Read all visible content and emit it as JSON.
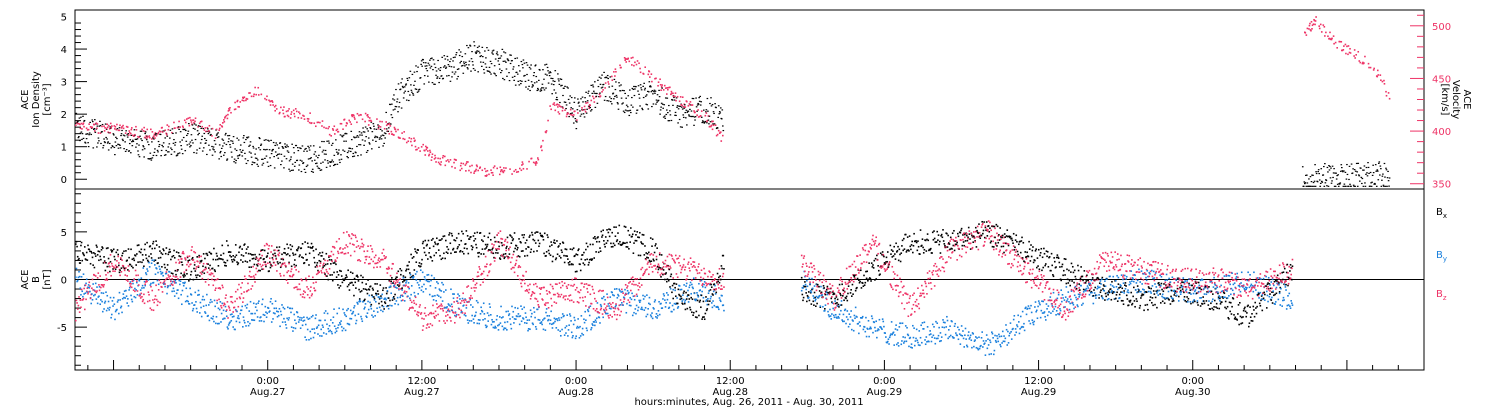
{
  "chart_data": [
    {
      "type": "scatter",
      "panel": "top",
      "ylabel": [
        "ACE",
        "Ion Density",
        "[cm⁻³]"
      ],
      "y2label": [
        "ACE",
        "Velocity",
        "[km/s]"
      ],
      "xlim": [
        -15,
        90
      ],
      "ylim": [
        -0.3,
        5.2
      ],
      "y2lim": [
        345,
        515
      ],
      "yticks": [
        "0",
        "1",
        "2",
        "3",
        "4",
        "5"
      ],
      "y2ticks": [
        "350",
        "400",
        "450",
        "500"
      ],
      "colors": {
        "density": "#000000",
        "velocity": "#ee3366"
      },
      "segments": [
        {
          "t0": -15,
          "t1": 35.4,
          "density": [
            [
              -15,
              1.6
            ],
            [
              -12,
              1.2
            ],
            [
              -9,
              1.0
            ],
            [
              -6,
              1.3
            ],
            [
              -3,
              1.0
            ],
            [
              0,
              0.8
            ],
            [
              3,
              0.6
            ],
            [
              6,
              1.0
            ],
            [
              9,
              1.5
            ],
            [
              10,
              2.5
            ],
            [
              12,
              3.3
            ],
            [
              14,
              3.4
            ],
            [
              16,
              3.8
            ],
            [
              18,
              3.6
            ],
            [
              20,
              3.2
            ],
            [
              22,
              3.1
            ],
            [
              24,
              2.0
            ],
            [
              26,
              2.9
            ],
            [
              28,
              2.4
            ],
            [
              30,
              2.6
            ],
            [
              32,
              2.0
            ],
            [
              34,
              2.2
            ],
            [
              35.4,
              1.8
            ]
          ],
          "velocity": [
            [
              -15,
              405
            ],
            [
              -12,
              403
            ],
            [
              -9,
              398
            ],
            [
              -6,
              410
            ],
            [
              -4,
              398
            ],
            [
              -3,
              422
            ],
            [
              -1,
              440
            ],
            [
              1,
              420
            ],
            [
              3,
              415
            ],
            [
              5,
              400
            ],
            [
              7,
              415
            ],
            [
              9,
              406
            ],
            [
              11,
              392
            ],
            [
              13,
              375
            ],
            [
              15,
              368
            ],
            [
              17,
              362
            ],
            [
              19,
              365
            ],
            [
              21,
              372
            ],
            [
              22,
              424
            ],
            [
              24,
              414
            ],
            [
              26,
              440
            ],
            [
              28,
              470
            ],
            [
              30,
              450
            ],
            [
              32,
              430
            ],
            [
              34,
              415
            ],
            [
              35.4,
              392
            ]
          ]
        },
        {
          "t0": 80.5,
          "t1": 87.3,
          "density": [
            [
              80.5,
              0.05
            ],
            [
              82,
              0.05
            ],
            [
              84,
              0.05
            ],
            [
              85.5,
              0.1
            ],
            [
              87.3,
              0.15
            ]
          ],
          "velocity": [
            [
              80.5,
              490
            ],
            [
              81.5,
              505
            ],
            [
              83,
              485
            ],
            [
              85,
              470
            ],
            [
              86.5,
              455
            ],
            [
              87.3,
              430
            ]
          ]
        }
      ]
    },
    {
      "type": "scatter",
      "panel": "bottom",
      "ylabel": [
        "ACE",
        "B",
        "[nT]"
      ],
      "xlim": [
        -15,
        90
      ],
      "ylim": [
        -9.5,
        9.5
      ],
      "yticks": [
        "-5",
        "0",
        "5"
      ],
      "xlabel": "hours:minutes, Aug. 26, 2011 - Aug. 30, 2011",
      "xticks": [
        {
          "t": 0,
          "time": "0:00",
          "date": "Aug.27"
        },
        {
          "t": 12,
          "time": "12:00",
          "date": "Aug.27"
        },
        {
          "t": 24,
          "time": "0:00",
          "date": "Aug.28"
        },
        {
          "t": 36,
          "time": "12:00",
          "date": "Aug.28"
        },
        {
          "t": 48,
          "time": "0:00",
          "date": "Aug.29"
        },
        {
          "t": 60,
          "time": "12:00",
          "date": "Aug.29"
        },
        {
          "t": 72,
          "time": "0:00",
          "date": "Aug.30"
        }
      ],
      "series": [
        {
          "name": "Bx",
          "label_main": "B",
          "label_sub": "x",
          "color": "#000000"
        },
        {
          "name": "By",
          "label_main": "B",
          "label_sub": "y",
          "color": "#1a80dd"
        },
        {
          "name": "Bz",
          "label_main": "B",
          "label_sub": "z",
          "color": "#ee3366"
        }
      ],
      "segments": [
        {
          "t0": -15,
          "t1": 35.5,
          "Bx": [
            [
              -15,
              3
            ],
            [
              -12,
              2
            ],
            [
              -9,
              3
            ],
            [
              -6,
              1
            ],
            [
              -3,
              3
            ],
            [
              0,
              2
            ],
            [
              3,
              3
            ],
            [
              6,
              0
            ],
            [
              9,
              -2
            ],
            [
              12,
              3
            ],
            [
              15,
              4
            ],
            [
              18,
              3.5
            ],
            [
              21,
              4
            ],
            [
              24,
              2
            ],
            [
              27,
              5
            ],
            [
              30,
              3
            ],
            [
              32,
              -2
            ],
            [
              34,
              -3
            ],
            [
              35.5,
              2
            ]
          ],
          "By": [
            [
              -15,
              0
            ],
            [
              -12,
              -3
            ],
            [
              -9,
              1
            ],
            [
              -6,
              -2
            ],
            [
              -3,
              -4
            ],
            [
              0,
              -3
            ],
            [
              3,
              -5
            ],
            [
              6,
              -4
            ],
            [
              9,
              -2
            ],
            [
              12,
              0
            ],
            [
              15,
              -3
            ],
            [
              18,
              -4
            ],
            [
              21,
              -4
            ],
            [
              24,
              -5
            ],
            [
              27,
              -2
            ],
            [
              30,
              -3
            ],
            [
              33,
              -1
            ],
            [
              35.5,
              -2
            ]
          ],
          "Bz": [
            [
              -15,
              -3
            ],
            [
              -12,
              2
            ],
            [
              -9,
              -2
            ],
            [
              -6,
              3
            ],
            [
              -3,
              -3
            ],
            [
              0,
              3
            ],
            [
              3,
              -1
            ],
            [
              6,
              4
            ],
            [
              9,
              2
            ],
            [
              12,
              -4
            ],
            [
              15,
              -3
            ],
            [
              18,
              4
            ],
            [
              21,
              -2
            ],
            [
              24,
              -1
            ],
            [
              27,
              -3
            ],
            [
              30,
              2
            ],
            [
              33,
              1
            ],
            [
              35.5,
              0
            ]
          ]
        },
        {
          "t0": 41.5,
          "t1": 79.7,
          "Bx": [
            [
              41.5,
              -1
            ],
            [
              44,
              -2
            ],
            [
              47,
              1
            ],
            [
              50,
              4
            ],
            [
              53,
              4
            ],
            [
              56,
              5
            ],
            [
              59,
              3
            ],
            [
              62,
              1
            ],
            [
              65,
              -1
            ],
            [
              68,
              -2
            ],
            [
              71,
              -1
            ],
            [
              74,
              -2
            ],
            [
              76,
              -4
            ],
            [
              79.7,
              1
            ]
          ],
          "By": [
            [
              41.5,
              0
            ],
            [
              44,
              -3
            ],
            [
              47,
              -5
            ],
            [
              50,
              -6
            ],
            [
              53,
              -5
            ],
            [
              56,
              -7
            ],
            [
              59,
              -4
            ],
            [
              62,
              -2
            ],
            [
              65,
              -1
            ],
            [
              68,
              0
            ],
            [
              71,
              -1
            ],
            [
              74,
              -1
            ],
            [
              76,
              0
            ],
            [
              79.7,
              -2
            ]
          ],
          "Bz": [
            [
              41.5,
              2
            ],
            [
              44,
              -2
            ],
            [
              47,
              4
            ],
            [
              50,
              -3
            ],
            [
              53,
              3
            ],
            [
              56,
              5
            ],
            [
              59,
              1
            ],
            [
              62,
              -3
            ],
            [
              65,
              2
            ],
            [
              68,
              1
            ],
            [
              71,
              0
            ],
            [
              74,
              0
            ],
            [
              76,
              -1
            ],
            [
              79.7,
              1
            ]
          ]
        }
      ]
    }
  ]
}
